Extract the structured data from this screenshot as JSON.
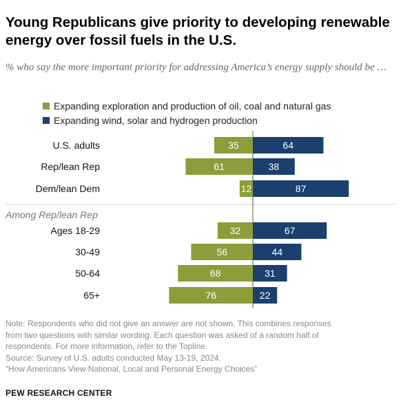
{
  "title": "Young Republicans give priority to developing renewable energy over fossil fuels in the U.S.",
  "subtitle": "% who say the more important priority for addressing America’s energy supply should be …",
  "legend": [
    {
      "label": "Expanding exploration and production of oil, coal and natural gas",
      "color": "#8c9d3b"
    },
    {
      "label": "Expanding wind, solar and hydrogen production",
      "color": "#1b3f6e"
    }
  ],
  "chart_data": {
    "type": "bar",
    "orientation": "horizontal-diverging",
    "categories": [
      "U.S. adults",
      "Rep/lean Rep",
      "Dem/lean Dem",
      "Ages 18-29",
      "30-49",
      "50-64",
      "65+"
    ],
    "section_label": "Among Rep/lean Rep",
    "section_starts_at": "Ages 18-29",
    "series": [
      {
        "name": "Expanding exploration and production of oil, coal and natural gas",
        "values": [
          35,
          61,
          12,
          32,
          56,
          68,
          76
        ],
        "color": "#8c9d3b"
      },
      {
        "name": "Expanding wind, solar and hydrogen production",
        "values": [
          64,
          38,
          87,
          67,
          44,
          31,
          22
        ],
        "color": "#1b3f6e"
      }
    ]
  },
  "notes": [
    "Note: Respondents who did not give an answer are not shown. This combines responses",
    "from two questions with similar wording. Each question was asked of a random half of",
    "respondents. For more information, refer to the Topline.",
    "Source: Survey of U.S. adults conducted May 13-19, 2024.",
    "“How Americans View National, Local and Personal Energy Choices”"
  ],
  "brand": "PEW RESEARCH CENTER"
}
